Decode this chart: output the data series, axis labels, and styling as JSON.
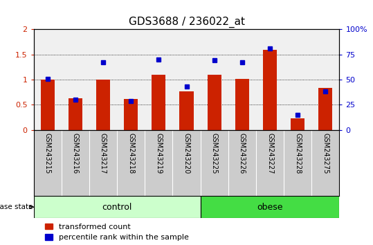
{
  "title": "GDS3688 / 236022_at",
  "samples": [
    "GSM243215",
    "GSM243216",
    "GSM243217",
    "GSM243218",
    "GSM243219",
    "GSM243220",
    "GSM243225",
    "GSM243226",
    "GSM243227",
    "GSM243228",
    "GSM243275"
  ],
  "transformed_count": [
    1.0,
    0.63,
    1.0,
    0.61,
    1.1,
    0.76,
    1.1,
    1.02,
    1.59,
    0.23,
    0.84
  ],
  "percentile_rank_pct": [
    51,
    30,
    67,
    29,
    70,
    43,
    69,
    67,
    81,
    15,
    38
  ],
  "groups": [
    {
      "label": "control",
      "start": 0,
      "end": 6,
      "color": "#ccffcc"
    },
    {
      "label": "obese",
      "start": 6,
      "end": 11,
      "color": "#44dd44"
    }
  ],
  "bar_color": "#cc2200",
  "dot_color": "#0000cc",
  "ylim_left": [
    0,
    2
  ],
  "ylim_right": [
    0,
    100
  ],
  "yticks_left": [
    0,
    0.5,
    1.0,
    1.5,
    2.0
  ],
  "ytick_labels_left": [
    "0",
    "0.5",
    "1",
    "1.5",
    "2"
  ],
  "yticks_right": [
    0,
    25,
    50,
    75,
    100
  ],
  "ytick_labels_right": [
    "0",
    "25",
    "50",
    "75",
    "100%"
  ],
  "bar_width": 0.5,
  "background_color": "#ffffff",
  "plot_bg_color": "#f0f0f0",
  "label_area_color": "#cccccc",
  "disease_state_label": "disease state",
  "legend_items": [
    {
      "label": "transformed count",
      "color": "#cc2200"
    },
    {
      "label": "percentile rank within the sample",
      "color": "#0000cc"
    }
  ],
  "title_fontsize": 11,
  "tick_fontsize": 8,
  "sample_fontsize": 7,
  "legend_fontsize": 8,
  "group_fontsize": 9
}
